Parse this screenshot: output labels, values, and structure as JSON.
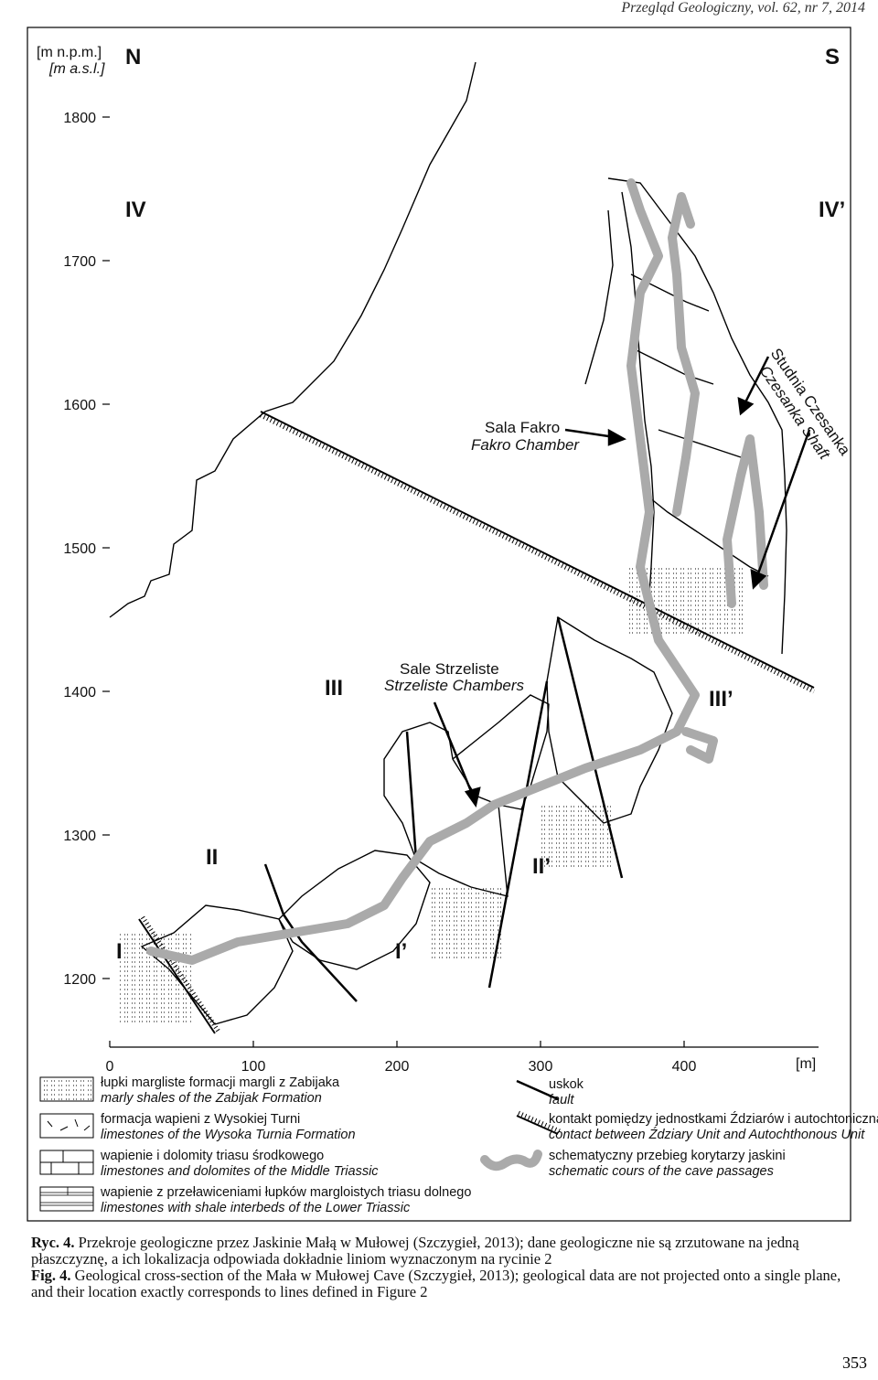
{
  "header": {
    "journal": "Przegląd Geologiczny, vol. 62, nr 7, 2014"
  },
  "figure": {
    "y_unit_pl": "[m n.p.m.]",
    "y_unit_en": "[m a.s.l.]",
    "x_unit": "[m]",
    "north": "N",
    "south": "S",
    "y_ticks": [
      1800,
      1700,
      1600,
      1500,
      1400,
      1300,
      1200
    ],
    "x_ticks": [
      0,
      100,
      200,
      300,
      400
    ],
    "section_labels": [
      "IV",
      "IV’",
      "III",
      "III’",
      "II",
      "II’",
      "I",
      "I’"
    ],
    "annotations": [
      {
        "pl": "Sala Fakro",
        "en": "Fakro Chamber"
      },
      {
        "pl": "Sale Strzeliste",
        "en": "Strzeliste Chambers"
      },
      {
        "pl": "Studnia Czesanka",
        "en": "Czesanka Shaft"
      }
    ],
    "legend": [
      {
        "pl": "łupki margliste formacji margli z Zabijaka",
        "en": "marly shales of the Zabijak Formation"
      },
      {
        "pl": "formacja wapieni z Wysokiej Turni",
        "en": "limestones of the Wysoka Turnia Formation"
      },
      {
        "pl": "wapienie i dolomity triasu środkowego",
        "en": "limestones and dolomites of the Middle Triassic"
      },
      {
        "pl": "wapienie z przeławiceniami łupków margloistych triasu dolnego",
        "en": "limestones with shale interbeds of the Lower Triassic"
      },
      {
        "pl": "uskok",
        "en": "fault"
      },
      {
        "pl": "kontakt pomiędzy jednostkami Ździarów i autochtoniczną",
        "en": "contact between Ździary Unit and Autochthonous Unit"
      },
      {
        "pl": "schematyczny przebieg korytarzy jaskini",
        "en": "schematic cours of the cave passages"
      }
    ]
  },
  "caption": {
    "pl_label": "Ryc. 4.",
    "pl_text": "Przekroje geologiczne przez Jaskinie Małą w Mułowej (Szczygieł, 2013); dane geologiczne nie są zrzutowane na jedną płaszczyznę, a ich lokalizacja odpowiada dokładnie liniom wyznaczonym na rycinie 2",
    "en_label": "Fig. 4.",
    "en_text": "Geological cross-section of the Mała w Mułowej Cave (Szczygieł, 2013); geological data are not projected onto a single plane, and their location exactly corresponds to lines defined in Figure 2"
  },
  "page_number": "353"
}
